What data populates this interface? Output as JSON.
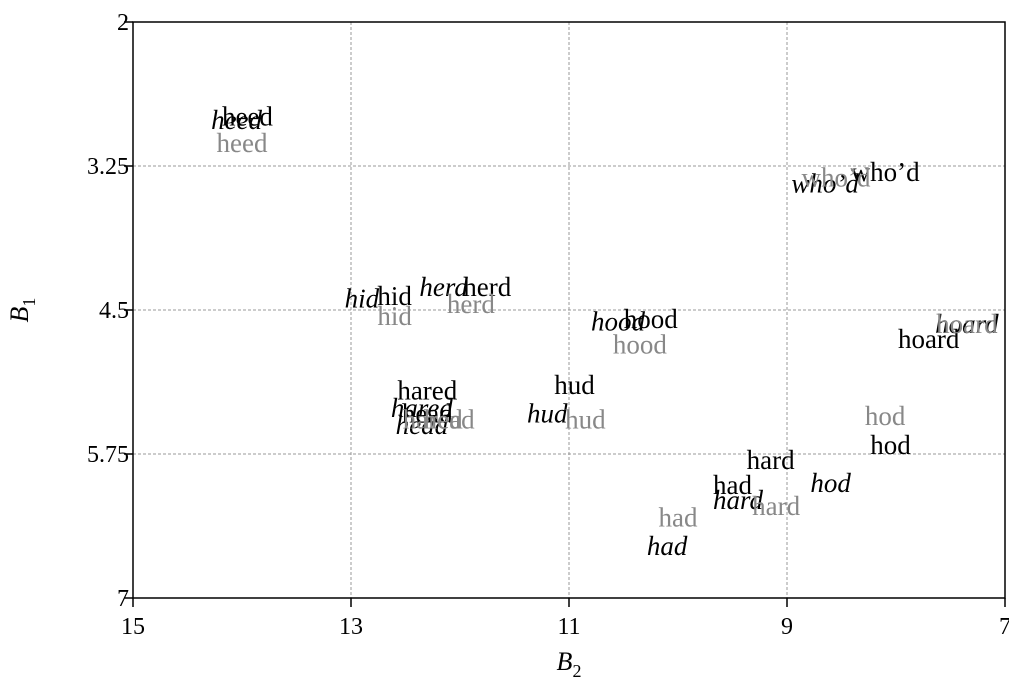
{
  "chart_data": {
    "type": "scatter",
    "title": "",
    "xlabel": "B",
    "xlabel_sub": "2",
    "ylabel": "B",
    "ylabel_sub": "1",
    "xlim": [
      15,
      7
    ],
    "ylim": [
      2,
      7
    ],
    "x_reversed": true,
    "y_reversed": true,
    "xticks": [
      15,
      13,
      11,
      9,
      7
    ],
    "yticks": [
      2,
      3.25,
      4.5,
      5.75,
      7
    ],
    "ytick_labels": [
      "2",
      "3.25",
      "4.5",
      "5.75",
      "7"
    ],
    "grid": true,
    "series": [
      {
        "style": "roman-black",
        "color": "#000000",
        "points": [
          {
            "label": "heed",
            "x": 13.95,
            "y": 2.82
          },
          {
            "label": "hid",
            "x": 12.6,
            "y": 4.38
          },
          {
            "label": "herd",
            "x": 11.75,
            "y": 4.3
          },
          {
            "label": "hood",
            "x": 10.25,
            "y": 4.58
          },
          {
            "label": "who’d",
            "x": 8.1,
            "y": 3.3
          },
          {
            "label": "hoard",
            "x": 7.7,
            "y": 4.75
          },
          {
            "label": "hared",
            "x": 12.3,
            "y": 5.2
          },
          {
            "label": "head",
            "x": 12.3,
            "y": 5.4
          },
          {
            "label": "hud",
            "x": 10.95,
            "y": 5.15
          },
          {
            "label": "hard",
            "x": 9.15,
            "y": 5.8
          },
          {
            "label": "had",
            "x": 9.5,
            "y": 6.02
          },
          {
            "label": "hod",
            "x": 8.05,
            "y": 5.67
          }
        ]
      },
      {
        "style": "italic-black",
        "color": "#000000",
        "points": [
          {
            "label": "heed",
            "x": 14.05,
            "y": 2.85
          },
          {
            "label": "hid",
            "x": 12.9,
            "y": 4.4
          },
          {
            "label": "herd",
            "x": 12.15,
            "y": 4.3
          },
          {
            "label": "hood",
            "x": 10.55,
            "y": 4.6
          },
          {
            "label": "who’d",
            "x": 8.65,
            "y": 3.4
          },
          {
            "label": "hoard",
            "x": 7.35,
            "y": 4.62
          },
          {
            "label": "hared",
            "x": 12.35,
            "y": 5.35
          },
          {
            "label": "head",
            "x": 12.35,
            "y": 5.5
          },
          {
            "label": "hud",
            "x": 11.2,
            "y": 5.4
          },
          {
            "label": "hard",
            "x": 9.45,
            "y": 6.15
          },
          {
            "label": "had",
            "x": 10.1,
            "y": 6.55
          },
          {
            "label": "hod",
            "x": 8.6,
            "y": 6.0
          }
        ]
      },
      {
        "style": "roman-gray",
        "color": "#888888",
        "points": [
          {
            "label": "heed",
            "x": 14.0,
            "y": 3.05
          },
          {
            "label": "hid",
            "x": 12.6,
            "y": 4.55
          },
          {
            "label": "herd",
            "x": 11.9,
            "y": 4.45
          },
          {
            "label": "hood",
            "x": 10.35,
            "y": 4.8
          },
          {
            "label": "who’d",
            "x": 8.55,
            "y": 3.35
          },
          {
            "label": "hoard",
            "x": 7.35,
            "y": 4.62
          },
          {
            "label": "hared",
            "x": 12.25,
            "y": 5.45
          },
          {
            "label": "head",
            "x": 12.1,
            "y": 5.45
          },
          {
            "label": "hud",
            "x": 10.85,
            "y": 5.45
          },
          {
            "label": "hard",
            "x": 9.1,
            "y": 6.2
          },
          {
            "label": "had",
            "x": 10.0,
            "y": 6.3
          },
          {
            "label": "hod",
            "x": 8.1,
            "y": 5.42
          }
        ]
      }
    ]
  }
}
